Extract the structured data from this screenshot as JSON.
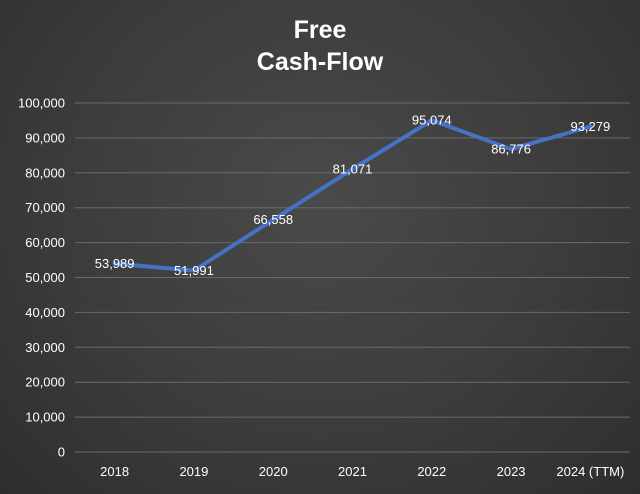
{
  "chart_data": {
    "type": "line",
    "title_lines": [
      "Free",
      "Cash-Flow"
    ],
    "categories": [
      "2018",
      "2019",
      "2020",
      "2021",
      "2022",
      "2023",
      "2024 (TTM)"
    ],
    "series": [
      {
        "values": [
          53989,
          51991,
          66558,
          81071,
          95074,
          86776,
          93279
        ],
        "data_labels": [
          "53,989",
          "51,991",
          "66,558",
          "81,071",
          "95,074",
          "86,776",
          "93,279"
        ],
        "color": "#4472c4"
      }
    ],
    "ylim": [
      0,
      100000
    ],
    "yticks": [
      0,
      10000,
      20000,
      30000,
      40000,
      50000,
      60000,
      70000,
      80000,
      90000,
      100000
    ],
    "ytick_labels": [
      "0",
      "10,000",
      "20,000",
      "30,000",
      "40,000",
      "50,000",
      "60,000",
      "70,000",
      "80,000",
      "90,000",
      "100,000"
    ],
    "xlabel": "",
    "ylabel": "",
    "grid": true,
    "legend": "none"
  },
  "colors": {
    "background": "#3c3c3c",
    "gridline": "#6a6a6a",
    "text": "#ffffff",
    "line": "#4472c4"
  }
}
